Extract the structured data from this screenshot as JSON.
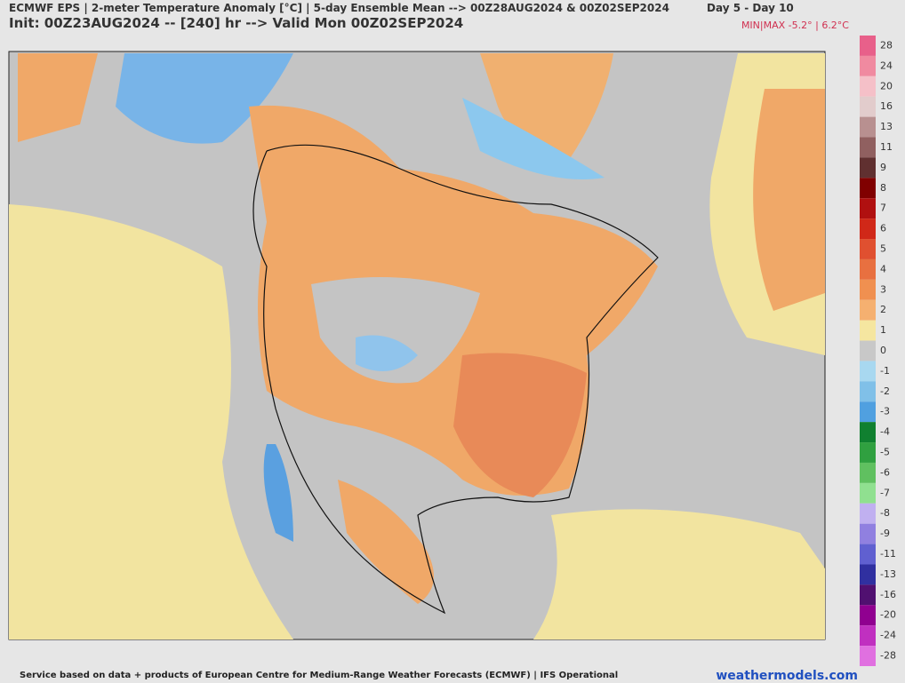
{
  "header": {
    "title": "ECMWF EPS | 2-meter Temperature Anomaly [°C] | 5-day Ensemble Mean --> 00Z28AUG2024 & 00Z02SEP2024",
    "range": "Day 5 - Day 10",
    "init": "Init: 00Z23AUG2024 -- [240] hr --> Valid Mon 00Z02SEP2024",
    "minmax": "MIN|MAX -5.2° | 6.2°C"
  },
  "colorbar": {
    "values": [
      28,
      24,
      20,
      16,
      13,
      11,
      9,
      8,
      7,
      6,
      5,
      4,
      3,
      2,
      1,
      0,
      -1,
      -2,
      -3,
      -4,
      -5,
      -6,
      -7,
      -8,
      -9,
      -11,
      -13,
      -16,
      -20,
      -24,
      -28
    ],
    "colors": [
      "#e8608a",
      "#f08aa0",
      "#f5c0c8",
      "#e2cccc",
      "#b89090",
      "#906060",
      "#603030",
      "#800000",
      "#b01010",
      "#d02818",
      "#e05030",
      "#e87040",
      "#f09050",
      "#f5b070",
      "#f5e6a0",
      "#c8c8c8",
      "#a8d8f0",
      "#80c0e8",
      "#50a0e0",
      "#108030",
      "#30a040",
      "#60c060",
      "#90e090",
      "#c0b0f0",
      "#9080e0",
      "#6060d0",
      "#3030a0",
      "#501070",
      "#900090",
      "#c030c0",
      "#e070e0"
    ]
  },
  "footer": {
    "credit": "Service based on data + products of European Centre for Medium-Range Weather Forecasts (ECMWF) | IFS Operational",
    "site": "weathermodels.com"
  }
}
